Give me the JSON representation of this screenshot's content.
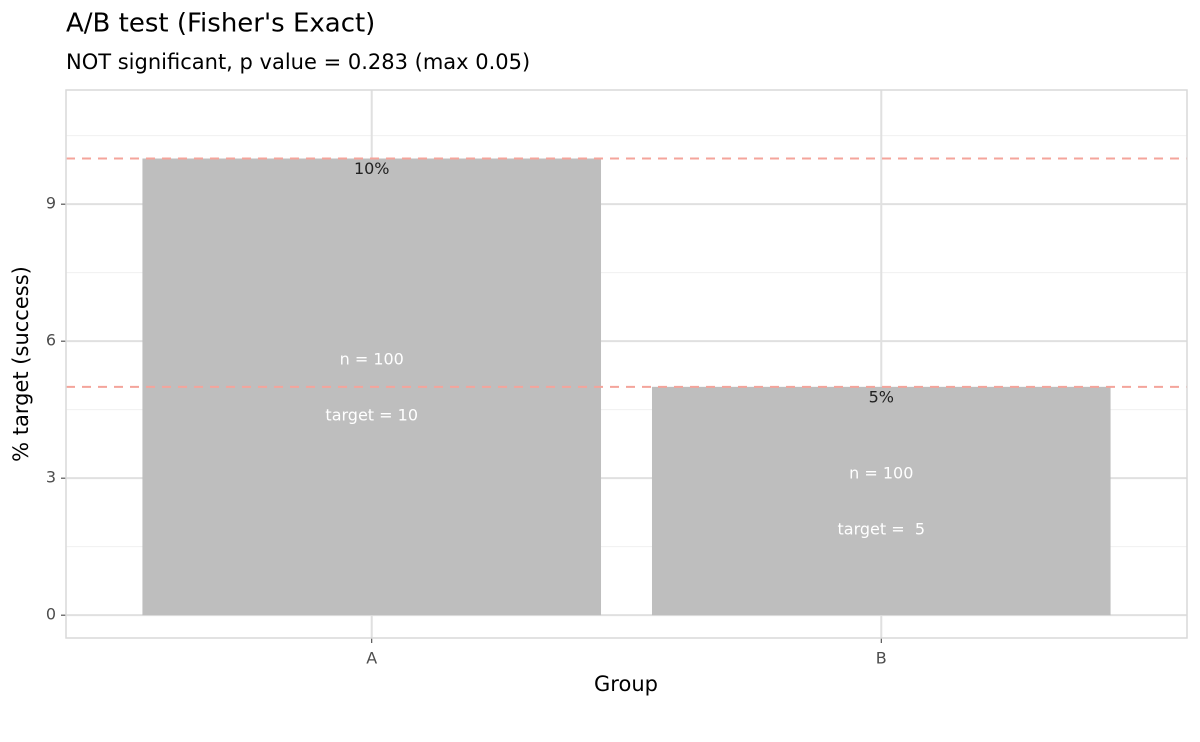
{
  "chart_data": {
    "type": "bar",
    "title": "A/B test (Fisher's Exact)",
    "subtitle": "NOT significant, p value = 0.283 (max 0.05)",
    "x_label": "Group",
    "y_label": "% target (success)",
    "categories": [
      "A",
      "B"
    ],
    "values": [
      10,
      5
    ],
    "value_labels": [
      "10%",
      "5%"
    ],
    "n_labels": [
      "n = 100",
      "n = 100"
    ],
    "target_labels": [
      "target = 10",
      "target =  5"
    ],
    "color": "#bebebe",
    "hlines": [
      10,
      5
    ],
    "hline_color": "#f4a49b",
    "ylim": [
      -0.5,
      11.5
    ],
    "yticks": [
      0,
      3,
      6,
      9
    ],
    "y_minor_ticks": [
      1.5,
      4.5,
      7.5,
      10.5
    ],
    "grid": true
  }
}
